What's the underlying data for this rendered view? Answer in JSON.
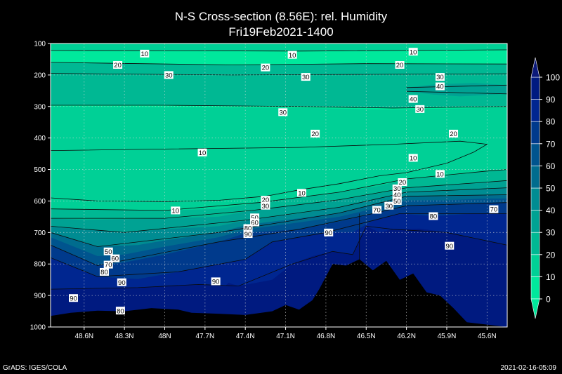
{
  "chart_data": {
    "type": "heatmap",
    "title": "N-S Cross-section (8.56E): rel. Humidity",
    "subtitle": "Fri19Feb2021-1400",
    "y_ticks": [
      "100",
      "200",
      "300",
      "400",
      "500",
      "600",
      "700",
      "800",
      "900",
      "1000"
    ],
    "x_ticks": [
      "48.6N",
      "48.3N",
      "48N",
      "47.7N",
      "47.4N",
      "47.1N",
      "46.8N",
      "46.5N",
      "46.2N",
      "45.9N",
      "45.6N"
    ],
    "colorbar": {
      "levels": [
        "0",
        "10",
        "20",
        "30",
        "40",
        "50",
        "60",
        "70",
        "80",
        "90",
        "100"
      ],
      "colors": [
        "#00e89c",
        "#00d096",
        "#00b893",
        "#00a293",
        "#008c92",
        "#006c8e",
        "#00548e",
        "#003a8c",
        "#002690",
        "#001a80"
      ]
    },
    "contour_labels": [
      {
        "text": "10",
        "lat": 48.15,
        "p": 132
      },
      {
        "text": "10",
        "lat": 47.05,
        "p": 136
      },
      {
        "text": "10",
        "lat": 46.15,
        "p": 126
      },
      {
        "text": "20",
        "lat": 48.35,
        "p": 168
      },
      {
        "text": "20",
        "lat": 47.25,
        "p": 176
      },
      {
        "text": "20",
        "lat": 46.25,
        "p": 168
      },
      {
        "text": "30",
        "lat": 47.97,
        "p": 200
      },
      {
        "text": "30",
        "lat": 46.95,
        "p": 206
      },
      {
        "text": "30",
        "lat": 45.95,
        "p": 206
      },
      {
        "text": "40",
        "lat": 45.95,
        "p": 236
      },
      {
        "text": "40",
        "lat": 46.15,
        "p": 276
      },
      {
        "text": "30",
        "lat": 46.1,
        "p": 308
      },
      {
        "text": "30",
        "lat": 47.12,
        "p": 318
      },
      {
        "text": "20",
        "lat": 46.88,
        "p": 386
      },
      {
        "text": "20",
        "lat": 45.85,
        "p": 386
      },
      {
        "text": "10",
        "lat": 47.72,
        "p": 446
      },
      {
        "text": "10",
        "lat": 46.15,
        "p": 463
      },
      {
        "text": "10",
        "lat": 45.95,
        "p": 514
      },
      {
        "text": "10",
        "lat": 46.98,
        "p": 574
      },
      {
        "text": "20",
        "lat": 47.25,
        "p": 596
      },
      {
        "text": "30",
        "lat": 47.25,
        "p": 615
      },
      {
        "text": "20",
        "lat": 46.23,
        "p": 540
      },
      {
        "text": "30",
        "lat": 46.27,
        "p": 560
      },
      {
        "text": "40",
        "lat": 46.27,
        "p": 580
      },
      {
        "text": "50",
        "lat": 46.27,
        "p": 600
      },
      {
        "text": "30",
        "lat": 46.33,
        "p": 615
      },
      {
        "text": "70",
        "lat": 46.42,
        "p": 628
      },
      {
        "text": "10",
        "lat": 47.92,
        "p": 630
      },
      {
        "text": "50",
        "lat": 47.33,
        "p": 652
      },
      {
        "text": "60",
        "lat": 47.33,
        "p": 668
      },
      {
        "text": "80",
        "lat": 47.38,
        "p": 686
      },
      {
        "text": "90",
        "lat": 47.38,
        "p": 705
      },
      {
        "text": "90",
        "lat": 46.78,
        "p": 700
      },
      {
        "text": "80",
        "lat": 46.0,
        "p": 648
      },
      {
        "text": "90",
        "lat": 45.88,
        "p": 742
      },
      {
        "text": "70",
        "lat": 45.55,
        "p": 626
      },
      {
        "text": "50",
        "lat": 48.42,
        "p": 760
      },
      {
        "text": "60",
        "lat": 48.37,
        "p": 782
      },
      {
        "text": "70",
        "lat": 48.42,
        "p": 802
      },
      {
        "text": "80",
        "lat": 48.45,
        "p": 825
      },
      {
        "text": "90",
        "lat": 48.32,
        "p": 858
      },
      {
        "text": "90",
        "lat": 47.62,
        "p": 855
      },
      {
        "text": "90",
        "lat": 48.68,
        "p": 908
      },
      {
        "text": "80",
        "lat": 48.33,
        "p": 948
      }
    ]
  },
  "footer": {
    "left": "GrADS: IGES/COLA",
    "right": "2021-02-16-05:09"
  }
}
